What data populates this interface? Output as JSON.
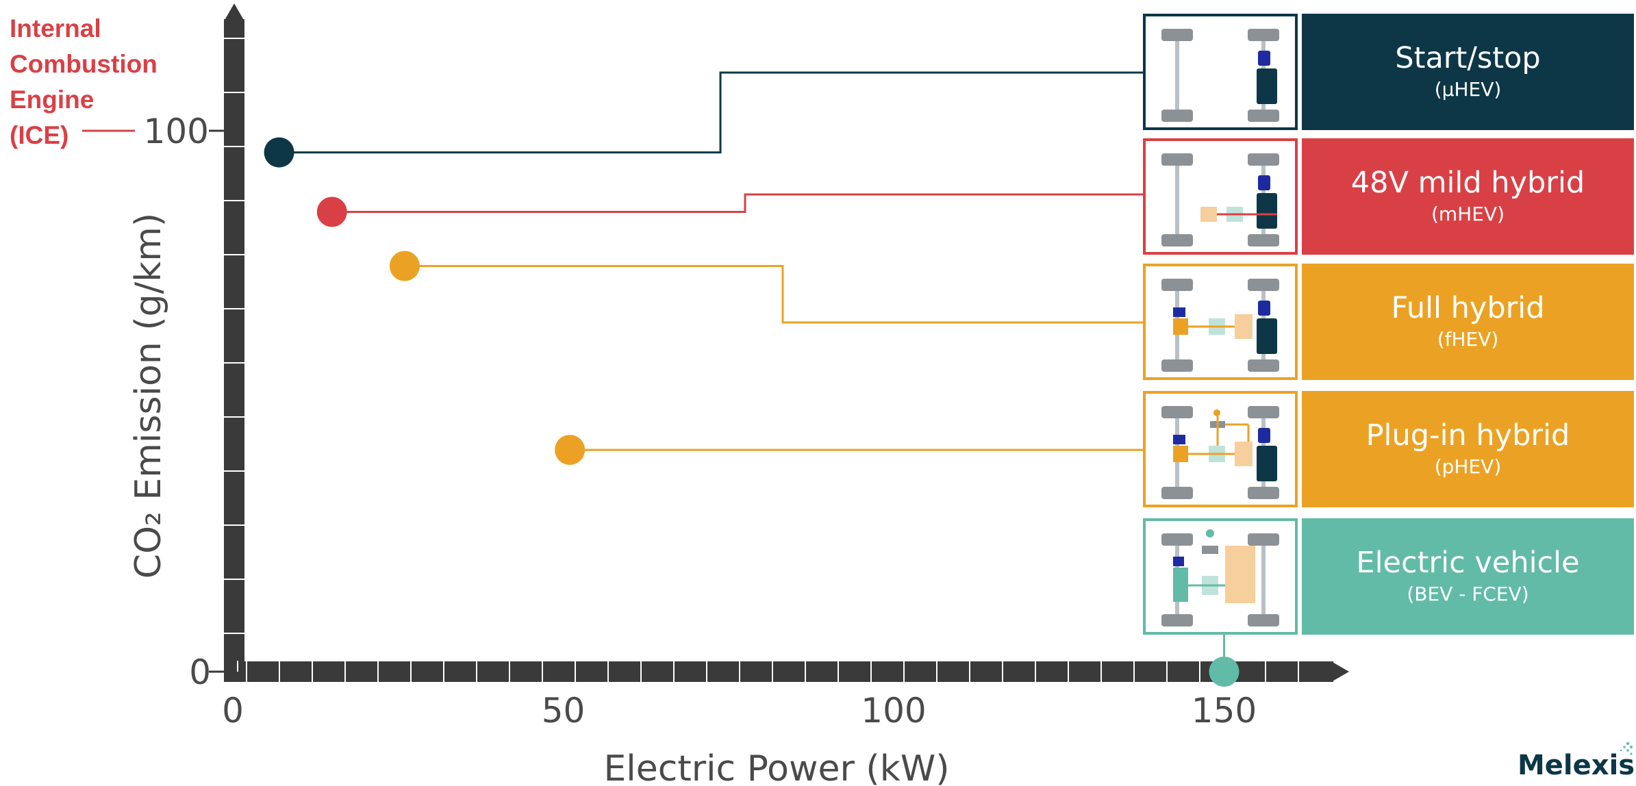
{
  "ice_label": {
    "lines": [
      "Internal",
      "Combustion",
      "Engine",
      "(ICE)"
    ],
    "color": "#d94045"
  },
  "chart_data": {
    "type": "scatter",
    "xlabel": "Electric Power (kW)",
    "ylabel": "CO₂ Emission (g/km)",
    "xlim": [
      0,
      167
    ],
    "ylim": [
      0,
      120
    ],
    "x_ticks": [
      {
        "value": 0,
        "label": "0"
      },
      {
        "value": 50,
        "label": "50"
      },
      {
        "value": 100,
        "label": "100"
      },
      {
        "value": 150,
        "label": "150"
      }
    ],
    "y_ticks": [
      {
        "value": 0,
        "label": "0"
      },
      {
        "value": 100,
        "label": "100"
      }
    ],
    "points": [
      {
        "x": 7,
        "y": 96,
        "color": "#0d3747"
      },
      {
        "x": 15,
        "y": 85,
        "color": "#d94045"
      },
      {
        "x": 26,
        "y": 75,
        "color": "#eba224"
      },
      {
        "x": 51,
        "y": 41,
        "color": "#eba224"
      },
      {
        "x": 150,
        "y": 0,
        "color": "#62bba6"
      }
    ],
    "grid": false
  },
  "categories": [
    {
      "name": "Start/stop",
      "abbr": "(µHEV)",
      "color": "#0d3747",
      "icon": "mild-hybrid-drivetrain-icon"
    },
    {
      "name": "48V mild hybrid",
      "abbr": "(mHEV)",
      "color": "#d94045",
      "icon": "mild-hybrid-drivetrain-icon"
    },
    {
      "name": "Full hybrid",
      "abbr": "(fHEV)",
      "color": "#eba224",
      "icon": "full-hybrid-drivetrain-icon"
    },
    {
      "name": "Plug-in hybrid",
      "abbr": "(pHEV)",
      "color": "#eba224",
      "icon": "plugin-hybrid-drivetrain-icon"
    },
    {
      "name": "Electric vehicle",
      "abbr": "(BEV - FCEV)",
      "color": "#62bba6",
      "icon": "electric-drivetrain-icon"
    }
  ],
  "brand": {
    "name": "Melexis"
  }
}
